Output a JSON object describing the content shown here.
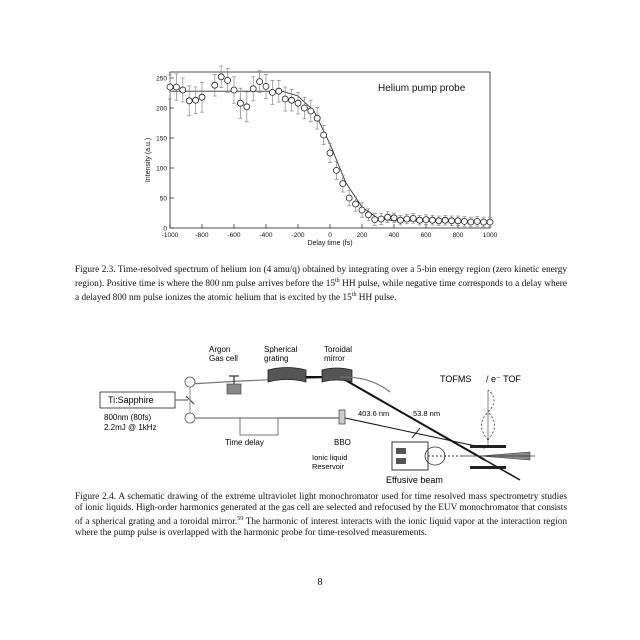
{
  "chart_data": {
    "type": "scatter",
    "title": "Helium pump probe",
    "xlabel": "Delay time (fs)",
    "ylabel": "Intensity (a.u.)",
    "xlim": [
      -1000,
      1000
    ],
    "ylim": [
      0,
      260
    ],
    "x_ticks": [
      -1000,
      -800,
      -600,
      -400,
      -200,
      0,
      200,
      400,
      600,
      800,
      1000
    ],
    "y_ticks": [
      0,
      50,
      100,
      150,
      200,
      250
    ],
    "series": [
      {
        "marker": "open-circle",
        "error_bars": true,
        "points": [
          {
            "x": -1000,
            "y": 235,
            "err": 20
          },
          {
            "x": -960,
            "y": 235,
            "err": 22
          },
          {
            "x": -920,
            "y": 230,
            "err": 20
          },
          {
            "x": -880,
            "y": 212,
            "err": 25
          },
          {
            "x": -840,
            "y": 213,
            "err": 22
          },
          {
            "x": -800,
            "y": 218,
            "err": 25
          },
          {
            "x": -720,
            "y": 238,
            "err": 18
          },
          {
            "x": -680,
            "y": 252,
            "err": 18
          },
          {
            "x": -640,
            "y": 246,
            "err": 20
          },
          {
            "x": -600,
            "y": 230,
            "err": 22
          },
          {
            "x": -560,
            "y": 208,
            "err": 25
          },
          {
            "x": -520,
            "y": 202,
            "err": 25
          },
          {
            "x": -480,
            "y": 232,
            "err": 20
          },
          {
            "x": -440,
            "y": 244,
            "err": 18
          },
          {
            "x": -400,
            "y": 236,
            "err": 20
          },
          {
            "x": -360,
            "y": 226,
            "err": 20
          },
          {
            "x": -320,
            "y": 228,
            "err": 18
          },
          {
            "x": -280,
            "y": 215,
            "err": 20
          },
          {
            "x": -240,
            "y": 213,
            "err": 18
          },
          {
            "x": -200,
            "y": 208,
            "err": 18
          },
          {
            "x": -160,
            "y": 200,
            "err": 18
          },
          {
            "x": -120,
            "y": 195,
            "err": 18
          },
          {
            "x": -80,
            "y": 183,
            "err": 18
          },
          {
            "x": -40,
            "y": 155,
            "err": 16
          },
          {
            "x": 0,
            "y": 125,
            "err": 16
          },
          {
            "x": 40,
            "y": 96,
            "err": 15
          },
          {
            "x": 80,
            "y": 74,
            "err": 14
          },
          {
            "x": 120,
            "y": 50,
            "err": 13
          },
          {
            "x": 160,
            "y": 40,
            "err": 12
          },
          {
            "x": 200,
            "y": 30,
            "err": 12
          },
          {
            "x": 240,
            "y": 22,
            "err": 10
          },
          {
            "x": 280,
            "y": 14,
            "err": 10
          },
          {
            "x": 320,
            "y": 15,
            "err": 9
          },
          {
            "x": 360,
            "y": 18,
            "err": 9
          },
          {
            "x": 400,
            "y": 17,
            "err": 8
          },
          {
            "x": 440,
            "y": 13,
            "err": 8
          },
          {
            "x": 480,
            "y": 15,
            "err": 8
          },
          {
            "x": 520,
            "y": 16,
            "err": 8
          },
          {
            "x": 560,
            "y": 13,
            "err": 8
          },
          {
            "x": 600,
            "y": 14,
            "err": 8
          },
          {
            "x": 640,
            "y": 13,
            "err": 8
          },
          {
            "x": 680,
            "y": 12,
            "err": 8
          },
          {
            "x": 720,
            "y": 13,
            "err": 8
          },
          {
            "x": 760,
            "y": 12,
            "err": 8
          },
          {
            "x": 800,
            "y": 12,
            "err": 8
          },
          {
            "x": 840,
            "y": 11,
            "err": 8
          },
          {
            "x": 880,
            "y": 10,
            "err": 8
          },
          {
            "x": 920,
            "y": 11,
            "err": 8
          },
          {
            "x": 960,
            "y": 10,
            "err": 8
          },
          {
            "x": 1000,
            "y": 10,
            "err": 8
          }
        ]
      },
      {
        "kind": "fit-line",
        "points": [
          {
            "x": -1000,
            "y": 228
          },
          {
            "x": -300,
            "y": 228
          },
          {
            "x": -200,
            "y": 220
          },
          {
            "x": -100,
            "y": 195
          },
          {
            "x": 0,
            "y": 140
          },
          {
            "x": 100,
            "y": 75
          },
          {
            "x": 200,
            "y": 35
          },
          {
            "x": 300,
            "y": 16
          },
          {
            "x": 400,
            "y": 12
          },
          {
            "x": 1000,
            "y": 10
          }
        ]
      }
    ],
    "grid": false,
    "legend": "none"
  },
  "caption1": {
    "pre": "Figure 2.3. Time-resolved spectrum of helium ion (4 amu/q) obtained by integrating over a 5-bin energy region (zero kinetic energy region). Positive time is where the 800 nm pulse arrives before the 15",
    "sup1": "th",
    "mid": " HH pulse, while negative time corresponds to a delay where a delayed 800 nm pulse ionizes the atomic helium that is excited by the 15",
    "sup2": "th",
    "post": " HH pulse."
  },
  "diagram": {
    "labels": {
      "argon": "Argon",
      "gas_cell": "Gas cell",
      "spherical": "Spherical",
      "grating": "grating",
      "toroidal": "Toroidal",
      "mirror": "mirror",
      "tofms": "TOFMS",
      "e_tof": "/ e⁻ TOF",
      "ti_sapphire": "Ti:Sapphire",
      "laser1": "800nm  (80fs)",
      "laser2": "2.2mJ @ 1kHz",
      "time_delay": "Time delay",
      "bbo": "BBO",
      "nm403": "403.6 nm",
      "nm53": "53.8 nm",
      "ionic1": "Ionic liquid",
      "ionic2": "Reservoir",
      "effusive": "Effusive beam"
    }
  },
  "caption2": {
    "pre": "Figure 2.4. A schematic drawing of the extreme ultraviolet light monochromator used for time resolved mass spectrometry studies of ionic liquids. High-order harmonics generated at the gas cell are selected and refocused by the EUV monochromator that consists of a spherical grating and a toroidal mirror.",
    "sup": "59",
    "post": " The harmonic of interest interacts with the ionic liquid vapor at the interaction region where the pump pulse is overlapped with the harmonic probe for time-resolved measurements."
  },
  "page_number": "8"
}
